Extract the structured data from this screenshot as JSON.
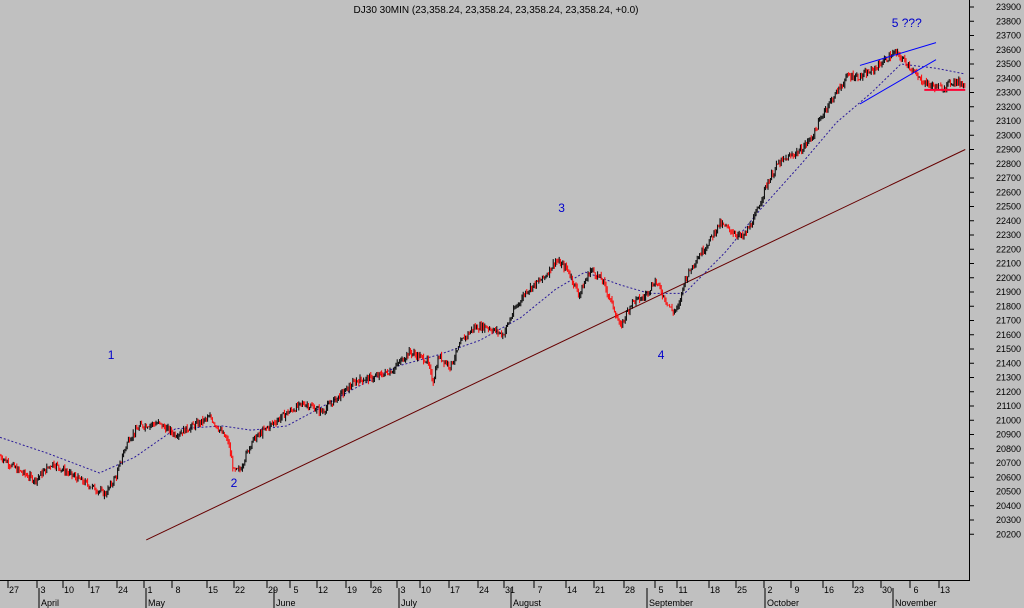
{
  "chart_data": {
    "type": "candlestick",
    "title": "DJ30 30MIN (23,358.24, 23,358.24, 23,358.24, 23,358.24, +0.0)",
    "ylim": [
      20100,
      23950
    ],
    "y_ticks": [
      20200,
      20300,
      20400,
      20500,
      20600,
      20700,
      20800,
      20900,
      21000,
      21100,
      21200,
      21300,
      21400,
      21500,
      21600,
      21700,
      21800,
      21900,
      22000,
      22100,
      22200,
      22300,
      22400,
      22500,
      22600,
      22700,
      22800,
      22900,
      23000,
      23100,
      23200,
      23300,
      23400,
      23500,
      23600,
      23700,
      23800,
      23900
    ],
    "x_tick_days": [
      "27",
      "3",
      "10",
      "17",
      "24",
      "1",
      "8",
      "15",
      "22",
      "29",
      "5",
      "12",
      "19",
      "26",
      "3",
      "10",
      "17",
      "24",
      "31",
      "7",
      "14",
      "21",
      "28",
      "5",
      "11",
      "18",
      "25",
      "2",
      "9",
      "16",
      "23",
      "30",
      "6",
      "13"
    ],
    "x_months": [
      "April",
      "May",
      "June",
      "July",
      "August",
      "September",
      "October",
      "November"
    ],
    "price_path": [
      [
        0,
        20750
      ],
      [
        3,
        20650
      ],
      [
        6,
        20580
      ],
      [
        9,
        20700
      ],
      [
        12,
        20620
      ],
      [
        15,
        20550
      ],
      [
        18,
        20480
      ],
      [
        20,
        20620
      ],
      [
        21,
        20760
      ],
      [
        22,
        20870
      ],
      [
        24,
        20960
      ],
      [
        27,
        20980
      ],
      [
        30,
        20900
      ],
      [
        33,
        20960
      ],
      [
        36,
        21020
      ],
      [
        39,
        20850
      ],
      [
        40,
        20640
      ],
      [
        41,
        20650
      ],
      [
        43,
        20850
      ],
      [
        46,
        20960
      ],
      [
        49,
        21050
      ],
      [
        52,
        21120
      ],
      [
        55,
        21060
      ],
      [
        58,
        21170
      ],
      [
        61,
        21280
      ],
      [
        64,
        21300
      ],
      [
        67,
        21350
      ],
      [
        70,
        21480
      ],
      [
        73,
        21420
      ],
      [
        74,
        21270
      ],
      [
        75,
        21450
      ],
      [
        77,
        21380
      ],
      [
        79,
        21560
      ],
      [
        81,
        21650
      ],
      [
        83,
        21660
      ],
      [
        86,
        21600
      ],
      [
        88,
        21780
      ],
      [
        90,
        21910
      ],
      [
        93,
        22000
      ],
      [
        95,
        22120
      ],
      [
        97,
        22060
      ],
      [
        99,
        21880
      ],
      [
        101,
        22060
      ],
      [
        103,
        21980
      ],
      [
        105,
        21780
      ],
      [
        106,
        21650
      ],
      [
        108,
        21830
      ],
      [
        110,
        21860
      ],
      [
        112,
        21980
      ],
      [
        114,
        21830
      ],
      [
        115,
        21760
      ],
      [
        116,
        21790
      ],
      [
        117,
        21980
      ],
      [
        119,
        22130
      ],
      [
        121,
        22240
      ],
      [
        123,
        22380
      ],
      [
        125,
        22330
      ],
      [
        127,
        22280
      ],
      [
        129,
        22420
      ],
      [
        131,
        22650
      ],
      [
        133,
        22800
      ],
      [
        135,
        22850
      ],
      [
        137,
        22900
      ],
      [
        139,
        23000
      ],
      [
        141,
        23180
      ],
      [
        143,
        23300
      ],
      [
        145,
        23420
      ],
      [
        147,
        23410
      ],
      [
        149,
        23450
      ],
      [
        151,
        23520
      ],
      [
        153,
        23580
      ],
      [
        155,
        23510
      ],
      [
        157,
        23400
      ],
      [
        159,
        23350
      ],
      [
        161,
        23330
      ],
      [
        163,
        23380
      ],
      [
        165,
        23358
      ]
    ],
    "moving_average": [
      [
        0,
        20880
      ],
      [
        8,
        20770
      ],
      [
        17,
        20630
      ],
      [
        23,
        20740
      ],
      [
        30,
        20940
      ],
      [
        38,
        20960
      ],
      [
        43,
        20930
      ],
      [
        49,
        20960
      ],
      [
        54,
        21070
      ],
      [
        60,
        21210
      ],
      [
        68,
        21380
      ],
      [
        75,
        21460
      ],
      [
        82,
        21560
      ],
      [
        89,
        21720
      ],
      [
        95,
        21920
      ],
      [
        100,
        22040
      ],
      [
        106,
        21950
      ],
      [
        111,
        21890
      ],
      [
        117,
        21890
      ],
      [
        124,
        22180
      ],
      [
        130,
        22480
      ],
      [
        137,
        22800
      ],
      [
        143,
        23090
      ],
      [
        149,
        23300
      ],
      [
        154,
        23500
      ],
      [
        160,
        23470
      ],
      [
        165,
        23430
      ]
    ],
    "trendline": [
      [
        25,
        20160
      ],
      [
        165,
        22900
      ]
    ],
    "wedge_upper": [
      [
        147,
        23490
      ],
      [
        160,
        23650
      ]
    ],
    "wedge_lower": [
      [
        147,
        23220
      ],
      [
        160,
        23530
      ]
    ],
    "support_level": [
      [
        158,
        23318
      ],
      [
        165,
        23318
      ]
    ],
    "wave_labels": [
      {
        "text": "1",
        "x": 19,
        "price": 21430
      },
      {
        "text": "2",
        "x": 40,
        "price": 20530
      },
      {
        "text": "3",
        "x": 96,
        "price": 22460
      },
      {
        "text": "4",
        "x": 113,
        "price": 21430
      },
      {
        "text": "5 ???",
        "x": 155,
        "price": 23760
      }
    ],
    "colors": {
      "background": "#c0c0c0",
      "up": "#000000",
      "down": "#ff0000",
      "ma": "#2a1a99",
      "trendline": "#660000",
      "wedge": "#0000ff",
      "support": "#ff0033",
      "wave_labels": "#0000cc"
    }
  }
}
